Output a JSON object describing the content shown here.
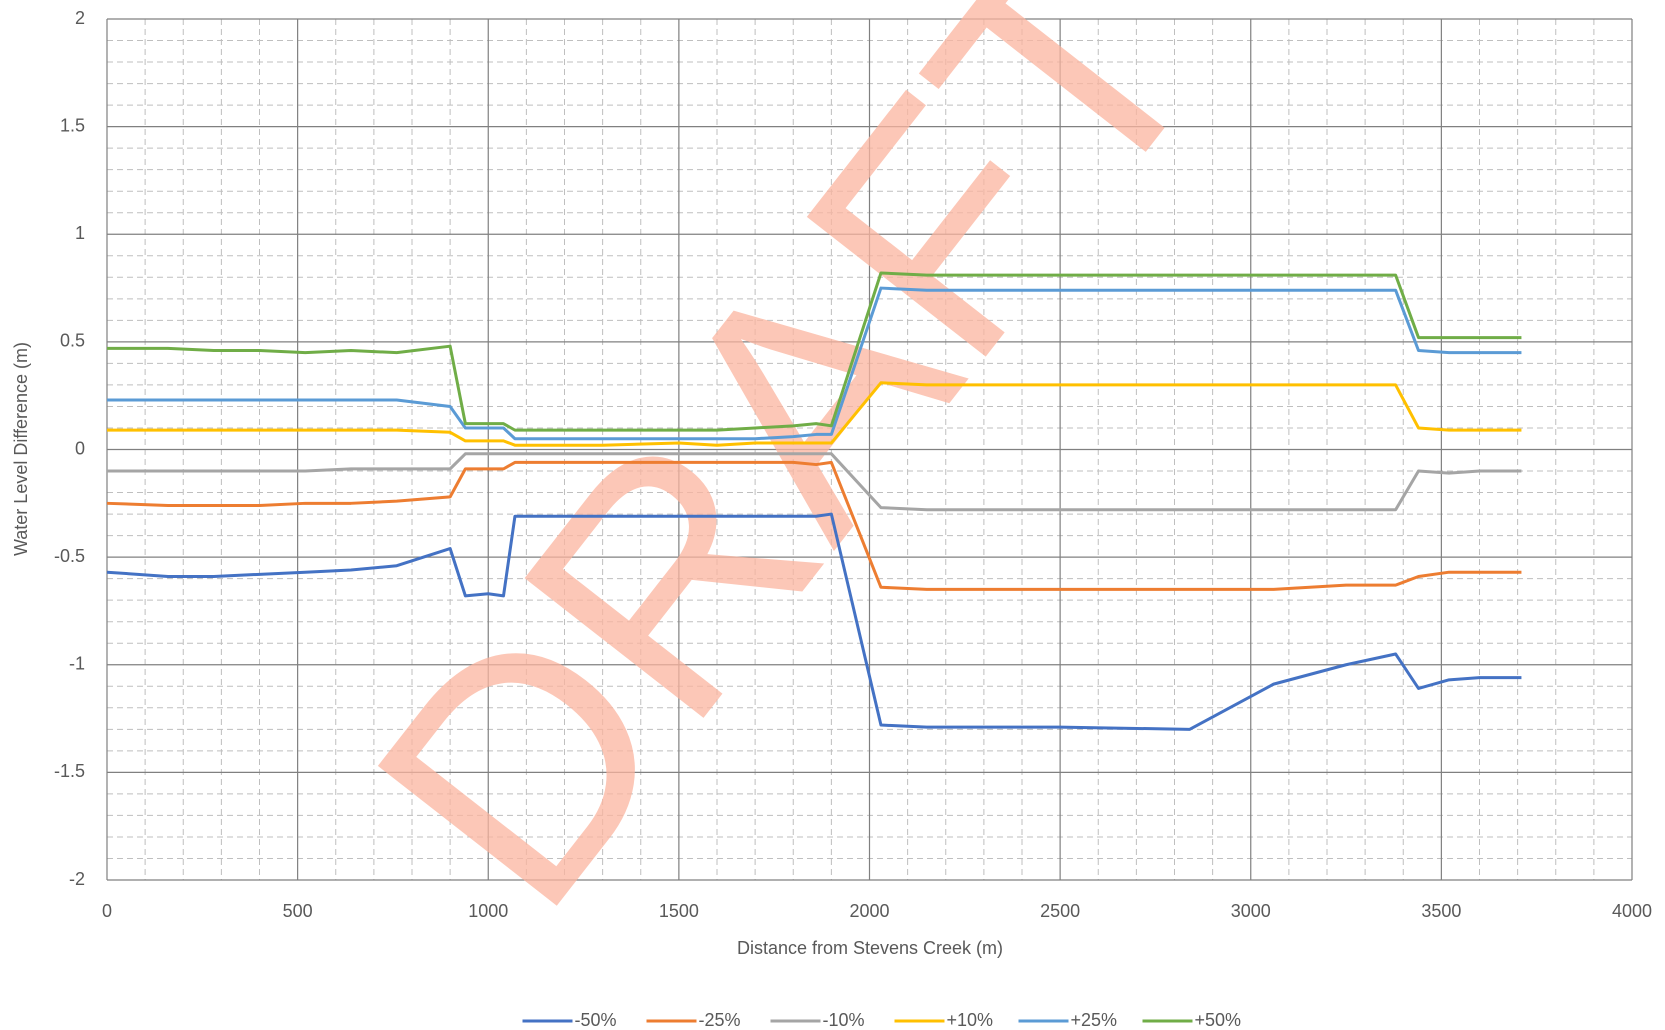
{
  "chart_data": {
    "type": "line",
    "watermark": "DRAFT",
    "xlabel": "Distance from Stevens Creek (m)",
    "ylabel": "Water Level Difference (m)",
    "x": [
      0,
      160,
      280,
      400,
      520,
      640,
      760,
      900,
      940,
      1000,
      1040,
      1070,
      1100,
      1300,
      1500,
      1600,
      1700,
      1800,
      1860,
      1900,
      2030,
      2150,
      2500,
      2840,
      3060,
      3250,
      3380,
      3440,
      3520,
      3600,
      3710
    ],
    "series": [
      {
        "name": "-50%",
        "color": "#4472c4",
        "values": [
          -0.57,
          -0.59,
          -0.59,
          -0.58,
          -0.57,
          -0.56,
          -0.54,
          -0.46,
          -0.68,
          -0.67,
          -0.68,
          -0.31,
          -0.31,
          -0.31,
          -0.31,
          -0.31,
          -0.31,
          -0.31,
          -0.31,
          -0.3,
          -1.28,
          -1.29,
          -1.29,
          -1.3,
          -1.09,
          -1.0,
          -0.95,
          -1.11,
          -1.07,
          -1.06,
          -1.06
        ]
      },
      {
        "name": "-25%",
        "color": "#ed7d31",
        "values": [
          -0.25,
          -0.26,
          -0.26,
          -0.26,
          -0.25,
          -0.25,
          -0.24,
          -0.22,
          -0.09,
          -0.09,
          -0.09,
          -0.06,
          -0.06,
          -0.06,
          -0.06,
          -0.06,
          -0.06,
          -0.06,
          -0.07,
          -0.06,
          -0.64,
          -0.65,
          -0.65,
          -0.65,
          -0.65,
          -0.63,
          -0.63,
          -0.59,
          -0.57,
          -0.57,
          -0.57
        ]
      },
      {
        "name": "-10%",
        "color": "#a5a5a5",
        "values": [
          -0.1,
          -0.1,
          -0.1,
          -0.1,
          -0.1,
          -0.09,
          -0.09,
          -0.09,
          -0.02,
          -0.02,
          -0.02,
          -0.02,
          -0.02,
          -0.02,
          -0.02,
          -0.02,
          -0.02,
          -0.02,
          -0.02,
          -0.02,
          -0.27,
          -0.28,
          -0.28,
          -0.28,
          -0.28,
          -0.28,
          -0.28,
          -0.1,
          -0.11,
          -0.1,
          -0.1
        ]
      },
      {
        "name": "+10%",
        "color": "#ffc000",
        "values": [
          0.09,
          0.09,
          0.09,
          0.09,
          0.09,
          0.09,
          0.09,
          0.08,
          0.04,
          0.04,
          0.04,
          0.02,
          0.02,
          0.02,
          0.03,
          0.02,
          0.03,
          0.03,
          0.03,
          0.03,
          0.31,
          0.3,
          0.3,
          0.3,
          0.3,
          0.3,
          0.3,
          0.1,
          0.09,
          0.09,
          0.09
        ]
      },
      {
        "name": "+25%",
        "color": "#5b9bd5",
        "values": [
          0.23,
          0.23,
          0.23,
          0.23,
          0.23,
          0.23,
          0.23,
          0.2,
          0.1,
          0.1,
          0.1,
          0.05,
          0.05,
          0.05,
          0.05,
          0.05,
          0.05,
          0.06,
          0.07,
          0.07,
          0.75,
          0.74,
          0.74,
          0.74,
          0.74,
          0.74,
          0.74,
          0.46,
          0.45,
          0.45,
          0.45
        ]
      },
      {
        "name": "+50%",
        "color": "#70ad47",
        "values": [
          0.47,
          0.47,
          0.46,
          0.46,
          0.45,
          0.46,
          0.45,
          0.48,
          0.12,
          0.12,
          0.12,
          0.09,
          0.09,
          0.09,
          0.09,
          0.09,
          0.1,
          0.11,
          0.12,
          0.11,
          0.82,
          0.81,
          0.81,
          0.81,
          0.81,
          0.81,
          0.81,
          0.52,
          0.52,
          0.52,
          0.52
        ]
      }
    ],
    "xlim": [
      0,
      4000
    ],
    "xticks": [
      0,
      500,
      1000,
      1500,
      2000,
      2500,
      3000,
      3500,
      4000
    ],
    "ylim": [
      -2,
      2
    ],
    "yticks": [
      -2,
      -1.5,
      -1,
      -0.5,
      0,
      0.5,
      1,
      1.5,
      2
    ],
    "xminorticks": [
      100,
      200,
      300,
      400,
      600,
      700,
      800,
      900,
      1100,
      1200,
      1300,
      1400,
      1600,
      1700,
      1800,
      1900,
      2100,
      2200,
      2300,
      2400,
      2600,
      2700,
      2800,
      2900,
      3100,
      3200,
      3300,
      3400,
      3600,
      3700,
      3800,
      3900
    ],
    "yminorticks": [
      -1.9,
      -1.8,
      -1.7,
      -1.6,
      -1.4,
      -1.3,
      -1.2,
      -1.1,
      -0.9,
      -0.8,
      -0.7,
      -0.6,
      -0.4,
      -0.3,
      -0.2,
      -0.1,
      0.1,
      0.2,
      0.3,
      0.4,
      0.6,
      0.7,
      0.8,
      0.9,
      1.1,
      1.2,
      1.3,
      1.4,
      1.6,
      1.7,
      1.8,
      1.9
    ],
    "grid": true,
    "legend": "bottom"
  }
}
